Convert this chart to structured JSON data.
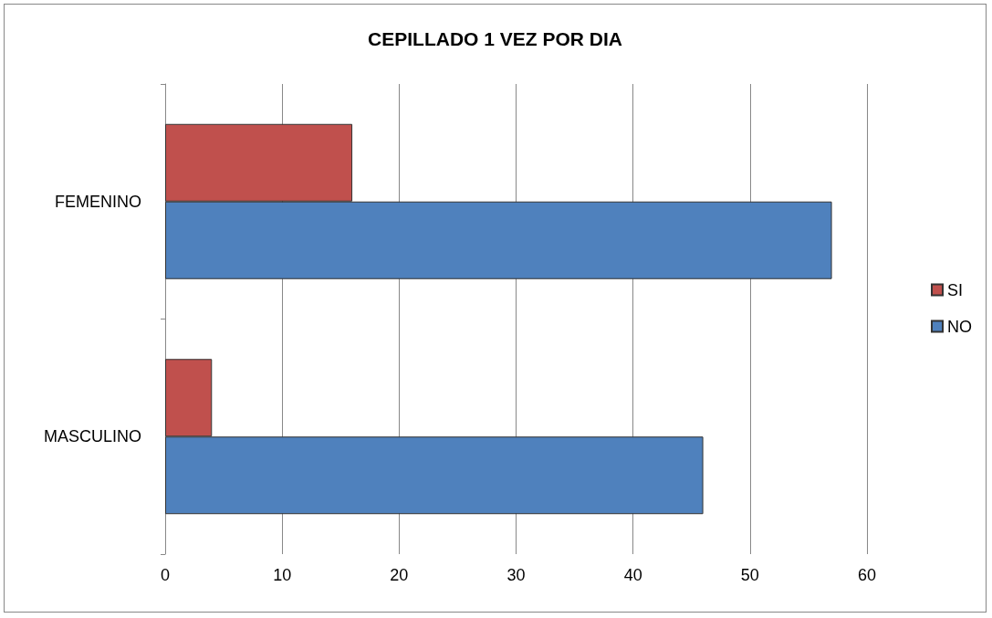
{
  "chart_data": {
    "type": "bar",
    "orientation": "horizontal",
    "title": "CEPILLADO 1 VEZ POR DIA",
    "categories": [
      "FEMENINO",
      "MASCULINO"
    ],
    "series": [
      {
        "name": "SI",
        "color": "#c0504d",
        "values": [
          16,
          4
        ]
      },
      {
        "name": "NO",
        "color": "#4f81bd",
        "values": [
          57,
          46
        ]
      }
    ],
    "xlim": [
      0,
      60
    ],
    "xticks": [
      0,
      10,
      20,
      30,
      40,
      50,
      60
    ],
    "grid": "x",
    "legend": "right"
  }
}
